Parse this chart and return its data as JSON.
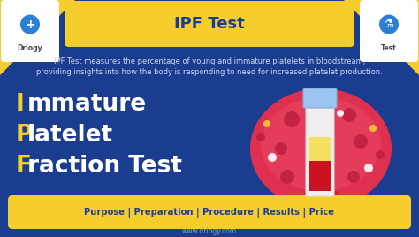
{
  "bg_color": "#1b3d8f",
  "title": "IPF Test",
  "title_bg": "#f5ce2e",
  "title_color": "#1b3d8f",
  "description_line1": "IPF Test measures the percentage of young and immature platelets in bloodstream,",
  "description_line2": "providing insights into how the body is responding to need for increased platelet production.",
  "desc_color": "#d0d8f0",
  "line1_letter": "I",
  "line1_rest": "mmature",
  "line2_letter": "P",
  "line2_rest": "latelet",
  "line3_letter": "F",
  "line3_rest": "raction Test",
  "letter_color": "#f5ce2e",
  "word_color": "#ffffff",
  "bottom_bar_bg": "#f5ce2e",
  "bottom_text": "Purpose | Preparation | Procedure | Results | Price",
  "bottom_text_color": "#1b3d8f",
  "website": "www.drlogy.com",
  "website_color": "#8899cc",
  "drlogy_label": "Drlogy",
  "test_label": "Test",
  "logo_bg": "#ffffff",
  "logo_icon_color": "#2b7fd4",
  "corner_yellow_color": "#f5ce2e",
  "ellipse_color": "#e03050",
  "ellipse_light": "#f07080",
  "tube_body": "#f0eeee",
  "tube_cap": "#9bc4f0",
  "tube_yellow_liq": "#f5e060",
  "tube_red_liq": "#cc1122"
}
